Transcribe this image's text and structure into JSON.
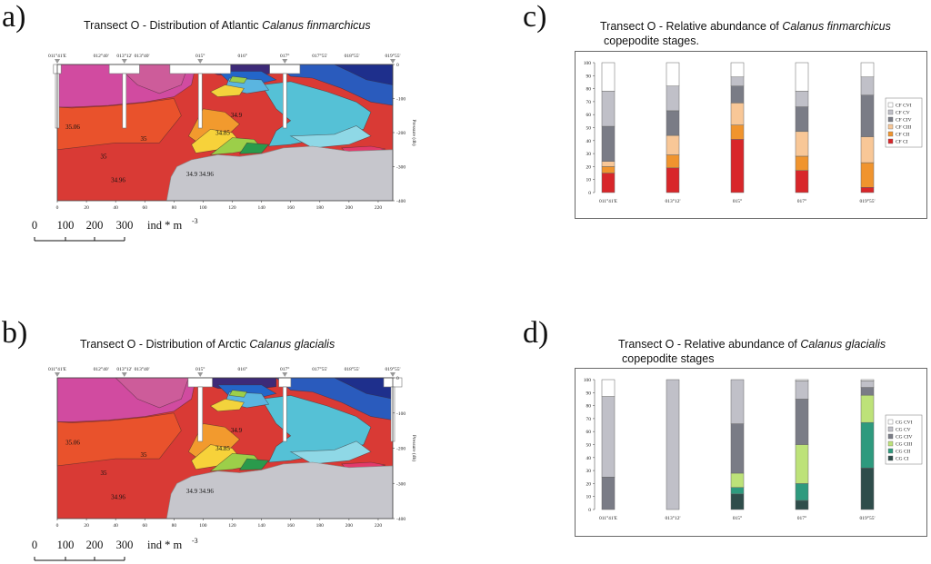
{
  "panels": {
    "a": {
      "letter": "a)",
      "title_prefix": "Transect O - Distribution of Atlantic ",
      "title_species": "Calanus finmarchicus",
      "title_suffix": ""
    },
    "b": {
      "letter": "b)",
      "title_prefix": "Transect O - Distribution of Arctic ",
      "title_species": "Calanus glacialis",
      "title_suffix": ""
    },
    "c": {
      "letter": "c)",
      "title_prefix": "Transect O - Relative abundance of ",
      "title_species": "Calanus finmarchicus",
      "title_line2": "copepodite stages."
    },
    "d": {
      "letter": "d)",
      "title_prefix": "Transect O - Relative abundance of ",
      "title_species": "Calanus glacialis",
      "title_line2": "copepodite stages"
    }
  },
  "section_axes": {
    "top_labels": [
      "011°41'E",
      "012°40'",
      "013°12'",
      "013°40'",
      "015°",
      "016°",
      "017°",
      "017°55'",
      "018°55'",
      "019°55'"
    ],
    "top_label_km": [
      0,
      30,
      46,
      58,
      98,
      127,
      156,
      180,
      202,
      230
    ],
    "station_km": [
      0,
      46,
      98,
      156,
      230
    ],
    "x_ticks": [
      "0",
      "20",
      "40",
      "60",
      "80",
      "100",
      "120",
      "140",
      "160",
      "180",
      "200",
      "220"
    ],
    "y_ticks": [
      "0",
      "-100",
      "-200",
      "-300",
      "-400"
    ],
    "y_label": "Pressure (db)",
    "contour_labels_a": [
      "35.06",
      "35",
      "35",
      "34.96",
      "34.9",
      "34.96",
      "34.85",
      "34.9"
    ],
    "contour_labels_b": [
      "35.06",
      "35",
      "35",
      "34.96",
      "34.9",
      "34.96",
      "34.85",
      "34.9"
    ]
  },
  "scale_bar": {
    "ticks": [
      "0",
      "100",
      "200",
      "300"
    ],
    "unit": "ind * m",
    "unit_sup": "-3"
  },
  "colors": {
    "CVI": "#ffffff",
    "CV_cf": "#c0c0c8",
    "CIV_cf": "#7a7c86",
    "CIII_cf": "#f8c797",
    "CII_cf": "#f0942e",
    "CI_cf": "#d8262a",
    "CV_cg": "#c0c0c8",
    "CIV_cg": "#7a7c86",
    "CIII_cg": "#bde279",
    "CII_cg": "#2e9a7e",
    "CI_cg": "#2f4d4b"
  },
  "chart_data": [
    {
      "type": "section",
      "title": "Transect O - Distribution of Atlantic Calanus finmarchicus",
      "xlabel": "",
      "ylabel": "Pressure (db)",
      "xlim": [
        0,
        230
      ],
      "ylim": [
        -400,
        0
      ],
      "stations": [
        "011°41'E",
        "013°12'",
        "015°",
        "017°",
        "019°55'"
      ],
      "abundance_bars": [
        {
          "station": "011°41'E",
          "segments_ind_m3": [
            25,
            100
          ]
        },
        {
          "station": "013°12'",
          "segments_ind_m3": [
            100,
            55
          ]
        },
        {
          "station": "015°",
          "segments_ind_m3": [
            200,
            80
          ]
        },
        {
          "station": "017°",
          "segments_ind_m3": [
            100,
            55
          ]
        },
        {
          "station": "019°55'",
          "segments_ind_m3": [
            0
          ]
        }
      ]
    },
    {
      "type": "section",
      "title": "Transect O - Distribution of Arctic Calanus glacialis",
      "xlabel": "",
      "ylabel": "Pressure (db)",
      "xlim": [
        0,
        230
      ],
      "ylim": [
        -400,
        0
      ],
      "stations": [
        "011°41'E",
        "013°12'",
        "015°",
        "017°",
        "019°55'"
      ],
      "abundance_bars": [
        {
          "station": "011°41'E",
          "segments_ind_m3": [
            0
          ]
        },
        {
          "station": "013°12'",
          "segments_ind_m3": [
            0
          ]
        },
        {
          "station": "015°",
          "segments_ind_m3": [
            80,
            150
          ]
        },
        {
          "station": "017°",
          "segments_ind_m3": [
            40,
            100
          ]
        },
        {
          "station": "019°55'",
          "segments_ind_m3": [
            60,
            50
          ]
        }
      ]
    },
    {
      "type": "bar",
      "stacked": true,
      "title": "Transect O - Relative abundance of Calanus finmarchicus copepodite stages.",
      "categories": [
        "011°41'E",
        "013°12'",
        "015°",
        "017°",
        "019°55'"
      ],
      "ylim": [
        0,
        100
      ],
      "yticks": [
        "0",
        "10",
        "20",
        "30",
        "40",
        "50",
        "60",
        "70",
        "80",
        "90",
        "100"
      ],
      "legend_position": "right",
      "series": [
        {
          "name": "CF CI",
          "color": "#d8262a",
          "values": [
            15,
            19,
            41,
            17,
            4
          ]
        },
        {
          "name": "CF CII",
          "color": "#f0942e",
          "values": [
            5,
            10,
            11,
            11,
            19
          ]
        },
        {
          "name": "CF CIII",
          "color": "#f8c797",
          "values": [
            4,
            15,
            17,
            19,
            20
          ]
        },
        {
          "name": "CF CIV",
          "color": "#7a7c86",
          "values": [
            27,
            19,
            13,
            19,
            32
          ]
        },
        {
          "name": "CF CV",
          "color": "#c0c0c8",
          "values": [
            27,
            19,
            7,
            12,
            14
          ]
        },
        {
          "name": "CF CVI",
          "color": "#ffffff",
          "values": [
            22,
            18,
            11,
            22,
            11
          ]
        }
      ]
    },
    {
      "type": "bar",
      "stacked": true,
      "title": "Transect O - Relative abundance of Calanus glacialis copepodite stages",
      "categories": [
        "011°41'E",
        "013°12'",
        "015°",
        "017°",
        "019°55'"
      ],
      "ylim": [
        0,
        100
      ],
      "yticks": [
        "0",
        "10",
        "20",
        "30",
        "40",
        "50",
        "60",
        "70",
        "80",
        "90",
        "100"
      ],
      "legend_position": "right",
      "series": [
        {
          "name": "CG CI",
          "color": "#2f4d4b",
          "values": [
            0,
            0,
            12,
            7,
            32
          ]
        },
        {
          "name": "CG CII",
          "color": "#2e9a7e",
          "values": [
            0,
            0,
            5,
            13,
            35
          ]
        },
        {
          "name": "CG CIII",
          "color": "#bde279",
          "values": [
            0,
            0,
            11,
            30,
            21
          ]
        },
        {
          "name": "CG CIV",
          "color": "#7a7c86",
          "values": [
            25,
            0,
            38,
            35,
            6
          ]
        },
        {
          "name": "CG CV",
          "color": "#c0c0c8",
          "values": [
            62,
            100,
            34,
            14,
            5
          ]
        },
        {
          "name": "CG CVI",
          "color": "#ffffff",
          "values": [
            13,
            0,
            0,
            1,
            1
          ]
        }
      ]
    }
  ]
}
